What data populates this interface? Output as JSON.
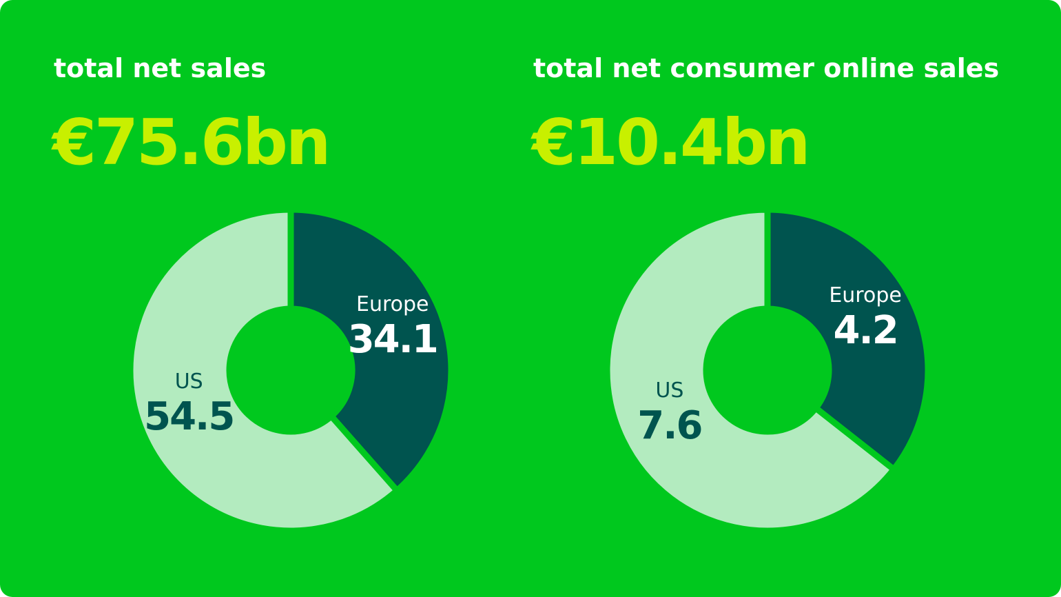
{
  "chart_data": [
    {
      "type": "donut",
      "title": "total net sales",
      "subtitle": "€75.6bn",
      "categories": [
        "Europe",
        "US"
      ],
      "values": [
        34.1,
        54.5
      ],
      "colors": [
        "#00544f",
        "#b3ebbf"
      ]
    },
    {
      "type": "donut",
      "title": "total net consumer online sales",
      "subtitle": "€10.4bn",
      "categories": [
        "Europe",
        "US"
      ],
      "values": [
        4.2,
        7.6
      ],
      "colors": [
        "#00544f",
        "#b3ebbf"
      ]
    }
  ]
}
